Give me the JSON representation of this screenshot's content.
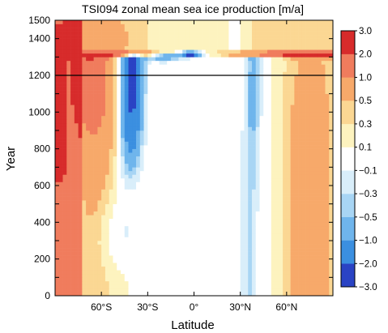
{
  "chart_data": {
    "type": "heatmap",
    "title": "TSI094 zonal mean sea ice production [m/a]",
    "xlabel": "Latitude",
    "ylabel": "Year",
    "xlim": [
      -90,
      90
    ],
    "ylim": [
      0,
      1500
    ],
    "x_ticks": [
      -60,
      -30,
      0,
      30,
      60
    ],
    "x_tick_labels": [
      "60°S",
      "30°S",
      "0°",
      "30°N",
      "60°N"
    ],
    "y_ticks": [
      0,
      100,
      200,
      300,
      400,
      500,
      600,
      700,
      800,
      900,
      1000,
      1100,
      1200,
      1300,
      1400,
      1500
    ],
    "y_tick_labels": [
      "0",
      "",
      "200",
      "",
      "400",
      "",
      "600",
      "",
      "800",
      "",
      "1000",
      "",
      "1200",
      "",
      "1400",
      "1500"
    ],
    "reference_line_year": 1200,
    "colorbar": {
      "levels": [
        -3.0,
        -2.0,
        -1.0,
        -0.5,
        -0.3,
        -0.1,
        0.1,
        0.3,
        0.5,
        1.0,
        2.0,
        3.0
      ],
      "labels": [
        "−3.0",
        "−2.0",
        "−1.0",
        "−0.5",
        "−0.3",
        "−0.1",
        "0.1",
        "0.3",
        "0.5",
        "1.0",
        "2.0",
        "3.0"
      ],
      "colors": [
        "#2a43c4",
        "#3b8fe0",
        "#6fb5ec",
        "#a8d5f4",
        "#d9eefa",
        "#ffffff",
        "#fdf3bf",
        "#fbd793",
        "#f7a96a",
        "#f07c5d",
        "#d72b2b"
      ]
    }
  }
}
